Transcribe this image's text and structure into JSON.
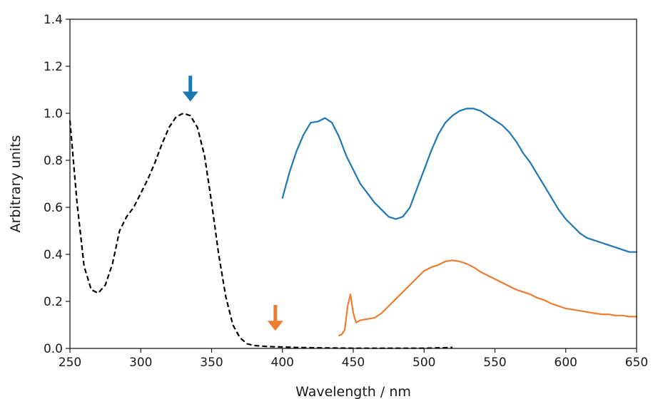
{
  "chart_data": {
    "type": "line",
    "xlabel": "Wavelength / nm",
    "ylabel": "Arbitrary units",
    "xlim": [
      250,
      650
    ],
    "ylim": [
      0,
      1.4
    ],
    "xticks": [
      250,
      300,
      350,
      400,
      450,
      500,
      550,
      600,
      650
    ],
    "yticks": [
      0.0,
      0.2,
      0.4,
      0.6,
      0.8,
      1.0,
      1.2,
      1.4
    ],
    "xtick_labels": [
      "250",
      "300",
      "350",
      "400",
      "450",
      "500",
      "550",
      "600",
      "650"
    ],
    "ytick_labels": [
      "0.0",
      "0.2",
      "0.4",
      "0.6",
      "0.8",
      "1.0",
      "1.2",
      "1.4"
    ],
    "grid": false,
    "series": [
      {
        "style": "dashed",
        "color": "#000000",
        "x": [
          250,
          255,
          260,
          265,
          270,
          275,
          280,
          285,
          290,
          295,
          300,
          305,
          310,
          315,
          320,
          325,
          330,
          335,
          340,
          345,
          350,
          355,
          360,
          365,
          370,
          375,
          380,
          385,
          390,
          395,
          400,
          410,
          420,
          430,
          450,
          470,
          500,
          520
        ],
        "y": [
          0.97,
          0.62,
          0.35,
          0.25,
          0.235,
          0.27,
          0.36,
          0.5,
          0.56,
          0.6,
          0.66,
          0.72,
          0.79,
          0.87,
          0.94,
          0.985,
          1.0,
          0.99,
          0.94,
          0.82,
          0.62,
          0.4,
          0.22,
          0.1,
          0.045,
          0.02,
          0.012,
          0.01,
          0.008,
          0.007,
          0.006,
          0.004,
          0.003,
          0.002,
          0.001,
          0.001,
          0.001,
          0.004
        ]
      },
      {
        "style": "solid",
        "color": "#1f77b4",
        "x": [
          400,
          405,
          410,
          415,
          420,
          425,
          430,
          435,
          440,
          445,
          450,
          455,
          460,
          465,
          470,
          475,
          480,
          485,
          490,
          495,
          500,
          505,
          510,
          515,
          520,
          525,
          530,
          535,
          540,
          545,
          550,
          555,
          560,
          565,
          570,
          575,
          580,
          585,
          590,
          595,
          600,
          605,
          610,
          615,
          620,
          625,
          630,
          635,
          640,
          645,
          650
        ],
        "y": [
          0.64,
          0.75,
          0.84,
          0.91,
          0.96,
          0.965,
          0.98,
          0.96,
          0.9,
          0.82,
          0.76,
          0.7,
          0.66,
          0.62,
          0.59,
          0.56,
          0.55,
          0.56,
          0.6,
          0.68,
          0.76,
          0.84,
          0.91,
          0.96,
          0.99,
          1.01,
          1.02,
          1.02,
          1.01,
          0.99,
          0.97,
          0.95,
          0.92,
          0.88,
          0.83,
          0.79,
          0.74,
          0.69,
          0.64,
          0.59,
          0.55,
          0.52,
          0.49,
          0.47,
          0.46,
          0.45,
          0.44,
          0.43,
          0.42,
          0.41,
          0.41
        ]
      },
      {
        "style": "solid",
        "color": "#ed7d31",
        "x": [
          440,
          442,
          444,
          446,
          448,
          450,
          452,
          455,
          460,
          465,
          470,
          475,
          480,
          485,
          490,
          495,
          500,
          505,
          510,
          515,
          520,
          525,
          530,
          535,
          540,
          545,
          550,
          555,
          560,
          565,
          570,
          575,
          580,
          585,
          590,
          595,
          600,
          605,
          610,
          615,
          620,
          625,
          630,
          635,
          640,
          645,
          650
        ],
        "y": [
          0.055,
          0.06,
          0.08,
          0.18,
          0.23,
          0.15,
          0.11,
          0.12,
          0.125,
          0.13,
          0.15,
          0.18,
          0.21,
          0.24,
          0.27,
          0.3,
          0.33,
          0.345,
          0.355,
          0.37,
          0.375,
          0.37,
          0.36,
          0.345,
          0.325,
          0.31,
          0.295,
          0.28,
          0.265,
          0.25,
          0.24,
          0.23,
          0.215,
          0.205,
          0.19,
          0.18,
          0.17,
          0.165,
          0.16,
          0.155,
          0.15,
          0.145,
          0.145,
          0.14,
          0.14,
          0.135,
          0.135
        ]
      }
    ],
    "annotations": [
      {
        "type": "arrow",
        "direction": "down",
        "color": "#1f77b4",
        "x": 335,
        "y_tip": 1.05,
        "y_tail": 1.16
      },
      {
        "type": "arrow",
        "direction": "down",
        "color": "#ed7d31",
        "x": 395,
        "y_tip": 0.075,
        "y_tail": 0.185
      }
    ]
  }
}
